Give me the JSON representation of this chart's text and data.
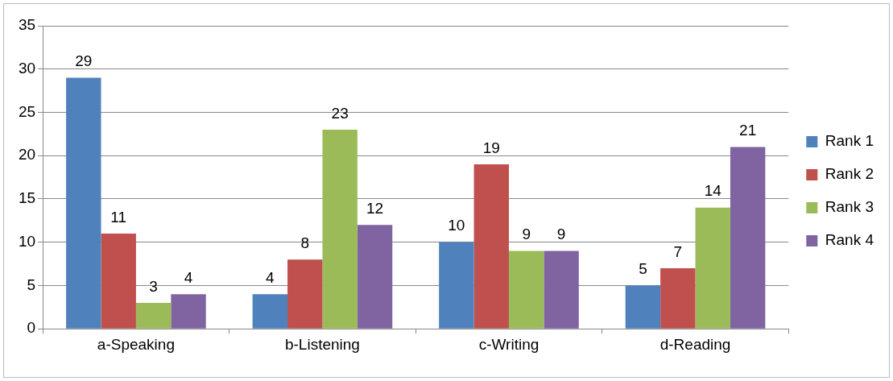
{
  "chart_data": {
    "type": "bar",
    "categories": [
      "a-Speaking",
      "b-Listening",
      "c-Writing",
      "d-Reading"
    ],
    "series": [
      {
        "name": "Rank 1",
        "color": "#4f81bd",
        "values": [
          29,
          4,
          10,
          5
        ]
      },
      {
        "name": "Rank 2",
        "color": "#c0504d",
        "values": [
          11,
          8,
          19,
          7
        ]
      },
      {
        "name": "Rank 3",
        "color": "#9bbb59",
        "values": [
          3,
          23,
          9,
          14
        ]
      },
      {
        "name": "Rank 4",
        "color": "#8064a2",
        "values": [
          4,
          12,
          9,
          21
        ]
      }
    ],
    "ylim": [
      0,
      35
    ],
    "yticks": [
      0,
      5,
      10,
      15,
      20,
      25,
      30,
      35
    ],
    "grid": "y",
    "legend": "right",
    "data_labels": true
  }
}
